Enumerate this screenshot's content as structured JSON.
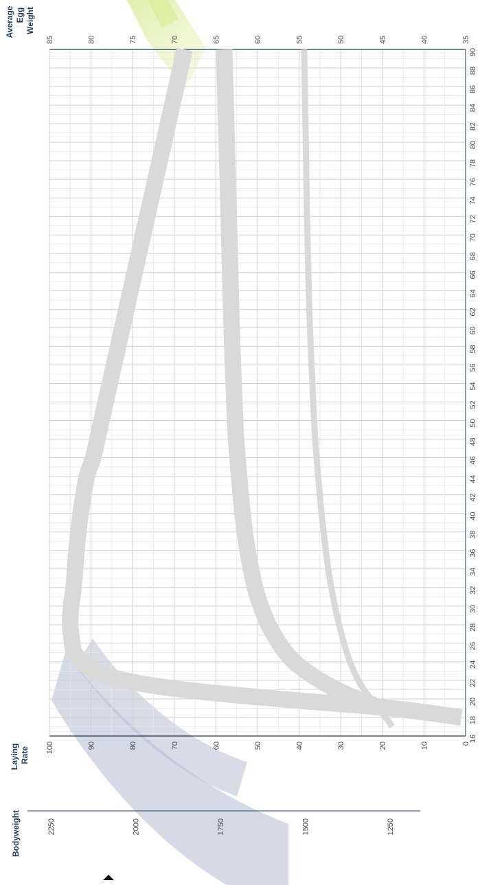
{
  "chart_data": {
    "type": "line",
    "orientation": "rotated",
    "x_axis": {
      "label": "",
      "range": [
        16,
        90
      ],
      "ticks": [
        16,
        18,
        20,
        22,
        24,
        26,
        28,
        30,
        32,
        34,
        36,
        38,
        40,
        42,
        44,
        46,
        48,
        50,
        52,
        54,
        56,
        58,
        60,
        62,
        64,
        66,
        68,
        70,
        72,
        74,
        76,
        78,
        80,
        82,
        84,
        86,
        88,
        90
      ]
    },
    "axes": {
      "laying_rate": {
        "label_line1": "Laying",
        "label_line2": "Rate",
        "range": [
          0,
          100
        ],
        "ticks": [
          0,
          10,
          20,
          30,
          40,
          50,
          60,
          70,
          80,
          90,
          100
        ]
      },
      "egg_weight": {
        "label_line1": "Average",
        "label_line2": "Egg",
        "label_line3": "Weight",
        "range": [
          35,
          85
        ],
        "ticks": [
          35,
          40,
          45,
          50,
          55,
          60,
          65,
          70,
          75,
          80,
          85
        ]
      },
      "bodyweight": {
        "label": "Bodyweight",
        "ticks": [
          1250,
          1500,
          1750,
          2000,
          2250
        ]
      }
    },
    "grid": true,
    "series": [
      {
        "axis": "laying_rate",
        "color": "#d9d9d9",
        "band": "wide",
        "x": [
          18,
          19,
          20,
          21,
          22,
          23,
          24,
          25,
          26,
          28,
          30,
          32,
          36,
          40,
          44,
          46,
          50,
          60,
          70,
          80,
          84,
          88,
          90
        ],
        "y": [
          1,
          18,
          45,
          68,
          82,
          89,
          92,
          94,
          94.5,
          95,
          94.8,
          94.2,
          93.5,
          92.5,
          91,
          89.5,
          87.5,
          82.5,
          77.5,
          72.5,
          70.5,
          68.5,
          67.5
        ]
      },
      {
        "axis": "egg_weight",
        "color": "#d9d9d9",
        "band": "wide",
        "x": [
          19,
          20,
          21,
          22,
          23,
          24,
          25,
          26,
          28,
          30,
          32,
          36,
          40,
          46,
          50,
          60,
          70,
          80,
          90
        ],
        "y": [
          45,
          48,
          50.5,
          52.5,
          54.2,
          55.6,
          56.6,
          57.4,
          58.7,
          59.6,
          60.3,
          61.2,
          61.8,
          62.4,
          62.7,
          63.1,
          63.4,
          63.7,
          64
        ]
      },
      {
        "axis": "egg_weight",
        "color": "#d9d9d9",
        "band": "narrow",
        "x": [
          17,
          18,
          19,
          20,
          21,
          22,
          24,
          26,
          28,
          30,
          34,
          40,
          46,
          50,
          60,
          70,
          80,
          90
        ],
        "y": [
          43.8,
          44.6,
          45.5,
          46.4,
          47.2,
          47.9,
          48.9,
          49.6,
          50.2,
          50.7,
          51.5,
          52.3,
          52.9,
          53.2,
          53.7,
          54,
          54.2,
          54.4
        ]
      }
    ]
  }
}
